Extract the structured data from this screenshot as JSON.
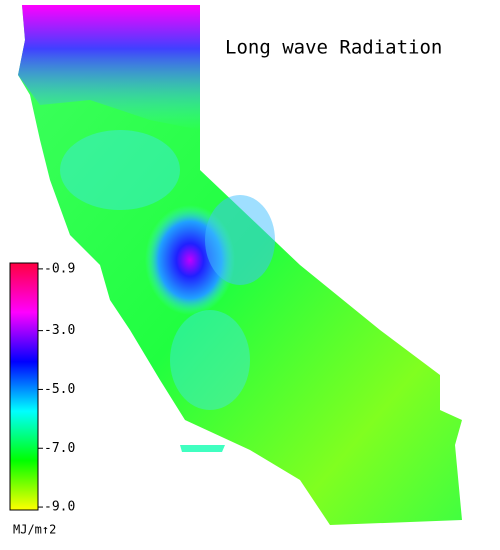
{
  "title": "Long wave Radiation",
  "colorbar": {
    "lim": [
      -9.1,
      -0.7
    ],
    "ticks": [
      -0.9,
      {
        "value": -3,
        "label": "-3.0"
      },
      {
        "value": -5,
        "label": "-5.0"
      },
      {
        "value": -7,
        "label": "-7.0"
      },
      {
        "value": -9,
        "label": "-9.0"
      }
    ],
    "colors": [
      "#ffff00",
      "#00ff00",
      "#00ffff",
      "#0000ff",
      "#ff00ff",
      "#ff0040"
    ],
    "unit": "MJ/m↑2"
  }
}
